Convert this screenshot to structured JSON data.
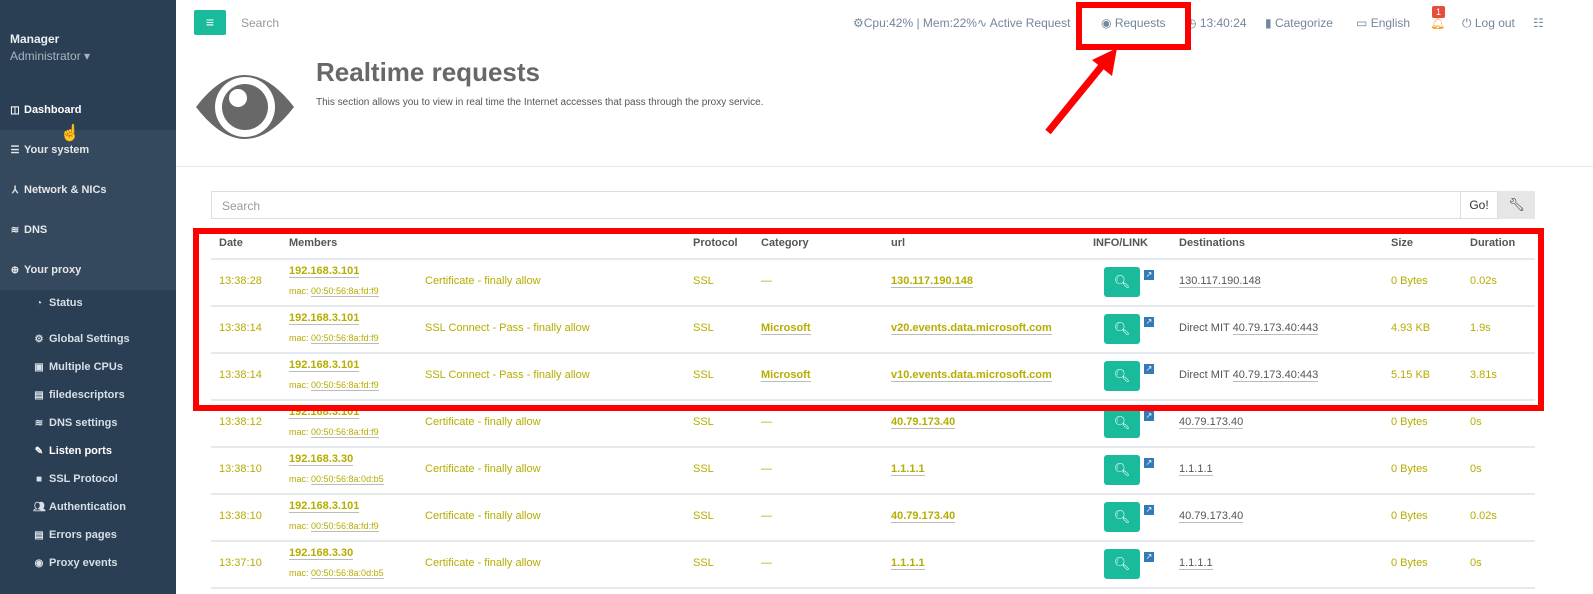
{
  "sidebar": {
    "user": "Manager",
    "role": "Administrator",
    "items": [
      {
        "label": "Dashboard",
        "icon": "columns-icon"
      },
      {
        "label": "Your system",
        "icon": "server-icon"
      },
      {
        "label": "Network & NICs",
        "icon": "sitemap-icon"
      },
      {
        "label": "DNS",
        "icon": "database-icon"
      },
      {
        "label": "Your proxy",
        "icon": "globe-icon"
      }
    ],
    "subitems": [
      {
        "label": "Status",
        "icon": "dashboard-icon"
      },
      {
        "label": "Global Settings",
        "icon": "cogs-icon"
      },
      {
        "label": "Multiple CPUs",
        "icon": "cpu-icon"
      },
      {
        "label": "filedescriptors",
        "icon": "file-icon"
      },
      {
        "label": "DNS settings",
        "icon": "database-icon"
      },
      {
        "label": "Listen ports",
        "icon": "wrench-icon"
      },
      {
        "label": "SSL Protocol",
        "icon": "square-icon"
      },
      {
        "label": "Authentication",
        "icon": "users-icon"
      },
      {
        "label": "Errors pages",
        "icon": "file-icon"
      },
      {
        "label": "Proxy events",
        "icon": "eye-icon"
      }
    ]
  },
  "topbar": {
    "search_placeholder": "Search",
    "cpu_mem": "Cpu:42% | Mem:22%",
    "active_requests": "Active Request",
    "requests": "Requests",
    "time": "13:40:24",
    "categorize": "Categorize",
    "language": "English",
    "notifications": "1",
    "logout": "Log out"
  },
  "header": {
    "title": "Realtime requests",
    "subtitle": "This section allows you to view in real time the Internet accesses that pass through the proxy service."
  },
  "search": {
    "placeholder": "Search",
    "go": "Go!"
  },
  "table": {
    "headers": [
      "Date",
      "Members",
      "Protocol",
      "Category",
      "url",
      "INFO/LINK",
      "Destinations",
      "Size",
      "Duration"
    ],
    "rows": [
      {
        "date": "13:38:28",
        "ip": "192.168.3.101",
        "mac": "00:50:56:8a:fd:f9",
        "status": "Certificate - finally allow",
        "protocol": "SSL",
        "category": "—",
        "url": "130.117.190.148",
        "dest_prefix": "",
        "dest": "130.117.190.148",
        "size": "0 Bytes",
        "duration": "0.02s"
      },
      {
        "date": "13:38:14",
        "ip": "192.168.3.101",
        "mac": "00:50:56:8a:fd:f9",
        "status": "SSL Connect - Pass - finally allow",
        "protocol": "SSL",
        "category": "Microsoft",
        "url": "v20.events.data.microsoft.com",
        "dest_prefix": "Direct MIT",
        "dest": "40.79.173.40:443",
        "size": "4.93 KB",
        "duration": "1.9s"
      },
      {
        "date": "13:38:14",
        "ip": "192.168.3.101",
        "mac": "00:50:56:8a:fd:f9",
        "status": "SSL Connect - Pass - finally allow",
        "protocol": "SSL",
        "category": "Microsoft",
        "url": "v10.events.data.microsoft.com",
        "dest_prefix": "Direct MIT",
        "dest": "40.79.173.40:443",
        "size": "5.15 KB",
        "duration": "3.81s"
      },
      {
        "date": "13:38:12",
        "ip": "192.168.3.101",
        "mac": "00:50:56:8a:fd:f9",
        "status": "Certificate - finally allow",
        "protocol": "SSL",
        "category": "—",
        "url": "40.79.173.40",
        "dest_prefix": "",
        "dest": "40.79.173.40",
        "size": "0 Bytes",
        "duration": "0s"
      },
      {
        "date": "13:38:10",
        "ip": "192.168.3.30",
        "mac": "00:50:56:8a:0d:b5",
        "status": "Certificate - finally allow",
        "protocol": "SSL",
        "category": "—",
        "url": "1.1.1.1",
        "dest_prefix": "",
        "dest": "1.1.1.1",
        "size": "0 Bytes",
        "duration": "0s"
      },
      {
        "date": "13:38:10",
        "ip": "192.168.3.101",
        "mac": "00:50:56:8a:fd:f9",
        "status": "Certificate - finally allow",
        "protocol": "SSL",
        "category": "—",
        "url": "40.79.173.40",
        "dest_prefix": "",
        "dest": "40.79.173.40",
        "size": "0 Bytes",
        "duration": "0.02s"
      },
      {
        "date": "13:37:10",
        "ip": "192.168.3.30",
        "mac": "00:50:56:8a:0d:b5",
        "status": "Certificate - finally allow",
        "protocol": "SSL",
        "category": "—",
        "url": "1.1.1.1",
        "dest_prefix": "",
        "dest": "1.1.1.1",
        "size": "0 Bytes",
        "duration": "0s"
      }
    ]
  },
  "colors": {
    "accent": "#1abb9c",
    "sidebar": "#2a3f54",
    "row_text": "#b5ad00",
    "annotation": "#ff0000"
  }
}
